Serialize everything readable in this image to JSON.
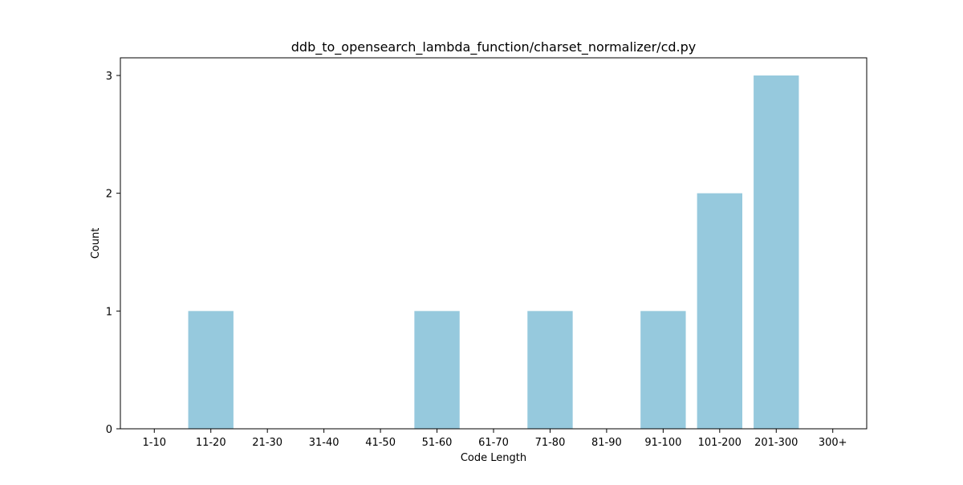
{
  "chart_data": {
    "type": "bar",
    "title": "ddb_to_opensearch_lambda_function/charset_normalizer/cd.py",
    "xlabel": "Code Length",
    "ylabel": "Count",
    "categories": [
      "1-10",
      "11-20",
      "21-30",
      "31-40",
      "41-50",
      "51-60",
      "61-70",
      "71-80",
      "81-90",
      "91-100",
      "101-200",
      "201-300",
      "300+"
    ],
    "values": [
      0,
      1,
      0,
      0,
      0,
      1,
      0,
      1,
      0,
      1,
      2,
      3,
      0
    ],
    "ylim": [
      0,
      3.15
    ],
    "yticks": [
      0,
      1,
      2,
      3
    ],
    "bar_color": "#96c9dd",
    "grid": false,
    "legend": "none"
  }
}
